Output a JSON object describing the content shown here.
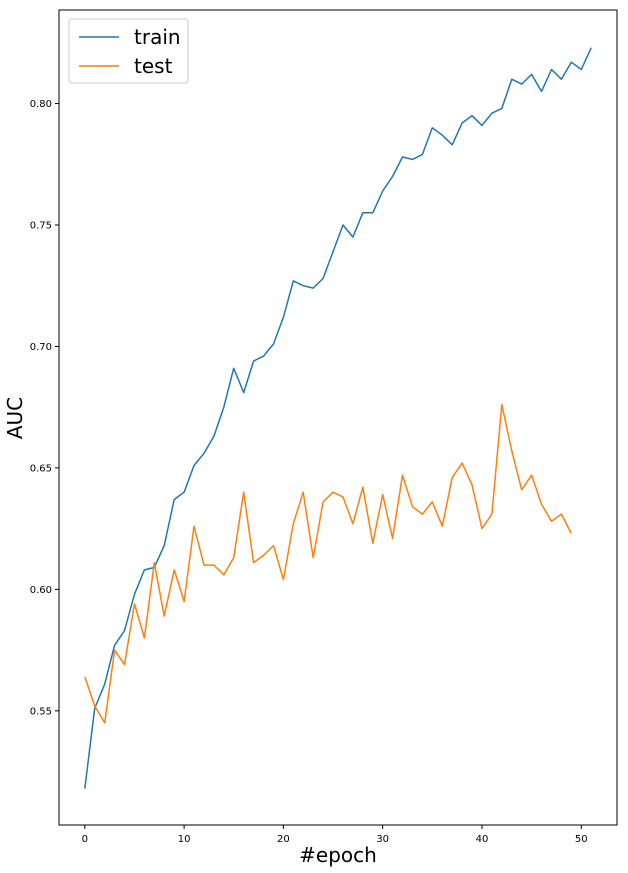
{
  "chart_data": {
    "type": "line",
    "xlabel": "#epoch",
    "ylabel": "AUC",
    "xlim": [
      -2.6,
      53.6
    ],
    "ylim": [
      0.503,
      0.8385
    ],
    "xticks": [
      0,
      10,
      20,
      30,
      40,
      50
    ],
    "yticks": [
      0.55,
      0.6,
      0.65,
      0.7,
      0.75,
      0.8
    ],
    "xtick_labels": [
      "0",
      "10",
      "20",
      "30",
      "40",
      "50"
    ],
    "ytick_labels": [
      "0.55",
      "0.60",
      "0.65",
      "0.70",
      "0.75",
      "0.80"
    ],
    "grid": false,
    "legend_position": "top-left",
    "series": [
      {
        "name": "train",
        "color": "#1f77b4",
        "x": [
          0,
          1,
          2,
          3,
          4,
          5,
          6,
          7,
          8,
          9,
          10,
          11,
          12,
          13,
          14,
          15,
          16,
          17,
          18,
          19,
          20,
          21,
          22,
          23,
          24,
          25,
          26,
          27,
          28,
          29,
          30,
          31,
          32,
          33,
          34,
          35,
          36,
          37,
          38,
          39,
          40,
          41,
          42,
          43,
          44,
          45,
          46,
          47,
          48,
          49,
          50,
          51
        ],
        "values": [
          0.518,
          0.551,
          0.561,
          0.577,
          0.583,
          0.598,
          0.608,
          0.609,
          0.618,
          0.637,
          0.64,
          0.651,
          0.656,
          0.663,
          0.675,
          0.691,
          0.681,
          0.694,
          0.696,
          0.701,
          0.712,
          0.727,
          0.725,
          0.724,
          0.728,
          0.739,
          0.75,
          0.745,
          0.755,
          0.755,
          0.764,
          0.77,
          0.778,
          0.777,
          0.779,
          0.79,
          0.787,
          0.783,
          0.792,
          0.795,
          0.791,
          0.796,
          0.798,
          0.81,
          0.808,
          0.812,
          0.805,
          0.814,
          0.81,
          0.817,
          0.814,
          0.823
        ]
      },
      {
        "name": "test",
        "color": "#ff7f0e",
        "x": [
          0,
          1,
          2,
          3,
          4,
          5,
          6,
          7,
          8,
          9,
          10,
          11,
          12,
          13,
          14,
          15,
          16,
          17,
          18,
          19,
          20,
          21,
          22,
          23,
          24,
          25,
          26,
          27,
          28,
          29,
          30,
          31,
          32,
          33,
          34,
          35,
          36,
          37,
          38,
          39,
          40,
          41,
          42,
          43,
          44,
          45,
          46,
          47,
          48,
          49
        ],
        "values": [
          0.564,
          0.552,
          0.545,
          0.575,
          0.569,
          0.594,
          0.58,
          0.611,
          0.589,
          0.608,
          0.595,
          0.626,
          0.61,
          0.61,
          0.606,
          0.613,
          0.64,
          0.611,
          0.614,
          0.618,
          0.604,
          0.627,
          0.64,
          0.613,
          0.636,
          0.64,
          0.638,
          0.627,
          0.642,
          0.619,
          0.639,
          0.621,
          0.647,
          0.634,
          0.631,
          0.636,
          0.626,
          0.646,
          0.652,
          0.643,
          0.625,
          0.631,
          0.676,
          0.657,
          0.641,
          0.647,
          0.635,
          0.628,
          0.631,
          0.623
        ]
      }
    ]
  }
}
